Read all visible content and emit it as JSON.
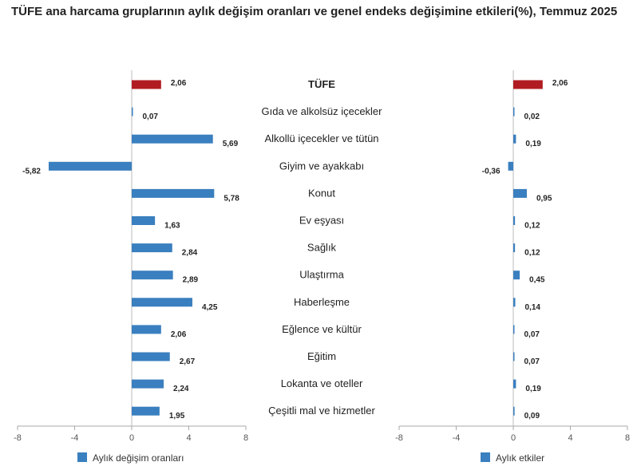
{
  "title": "TÜFE ana harcama gruplarının aylık değişim oranları ve genel endeks değişimine etkileri(%), Temmuz 2025",
  "chart_data": {
    "type": "bar",
    "orientation": "horizontal",
    "categories": [
      "TÜFE",
      "Gıda ve alkolsüz içecekler",
      "Alkollü içecekler ve tütün",
      "Giyim ve ayakkabı",
      "Konut",
      "Ev eşyası",
      "Sağlık",
      "Ulaştırma",
      "Haberleşme",
      "Eğlence ve kültür",
      "Eğitim",
      "Lokanta ve oteller",
      "Çeşitli mal ve hizmetler"
    ],
    "highlight_index": 0,
    "colors": {
      "bar": "#3a7fbf",
      "highlight": "#b01c22",
      "axis": "#aaaaaa"
    },
    "xlim": [
      -8,
      8
    ],
    "xticks": [
      -8,
      -4,
      0,
      4,
      8
    ],
    "panels": [
      {
        "legend": "Aylık değişim oranları",
        "values": [
          2.06,
          0.07,
          5.69,
          -5.82,
          5.78,
          1.63,
          2.84,
          2.89,
          4.25,
          2.06,
          2.67,
          2.24,
          1.95
        ],
        "labels": [
          "2,06",
          "0,07",
          "5,69",
          "-5,82",
          "5,78",
          "1,63",
          "2,84",
          "2,89",
          "4,25",
          "2,06",
          "2,67",
          "2,24",
          "1,95"
        ]
      },
      {
        "legend": "Aylık etkiler",
        "values": [
          2.06,
          0.02,
          0.19,
          -0.36,
          0.95,
          0.12,
          0.12,
          0.45,
          0.14,
          0.07,
          0.07,
          0.19,
          0.09
        ],
        "labels": [
          "2,06",
          "0,02",
          "0,19",
          "-0,36",
          "0,95",
          "0,12",
          "0,12",
          "0,45",
          "0,14",
          "0,07",
          "0,07",
          "0,19",
          "0,09"
        ]
      }
    ],
    "legend_position": "bottom-left"
  }
}
